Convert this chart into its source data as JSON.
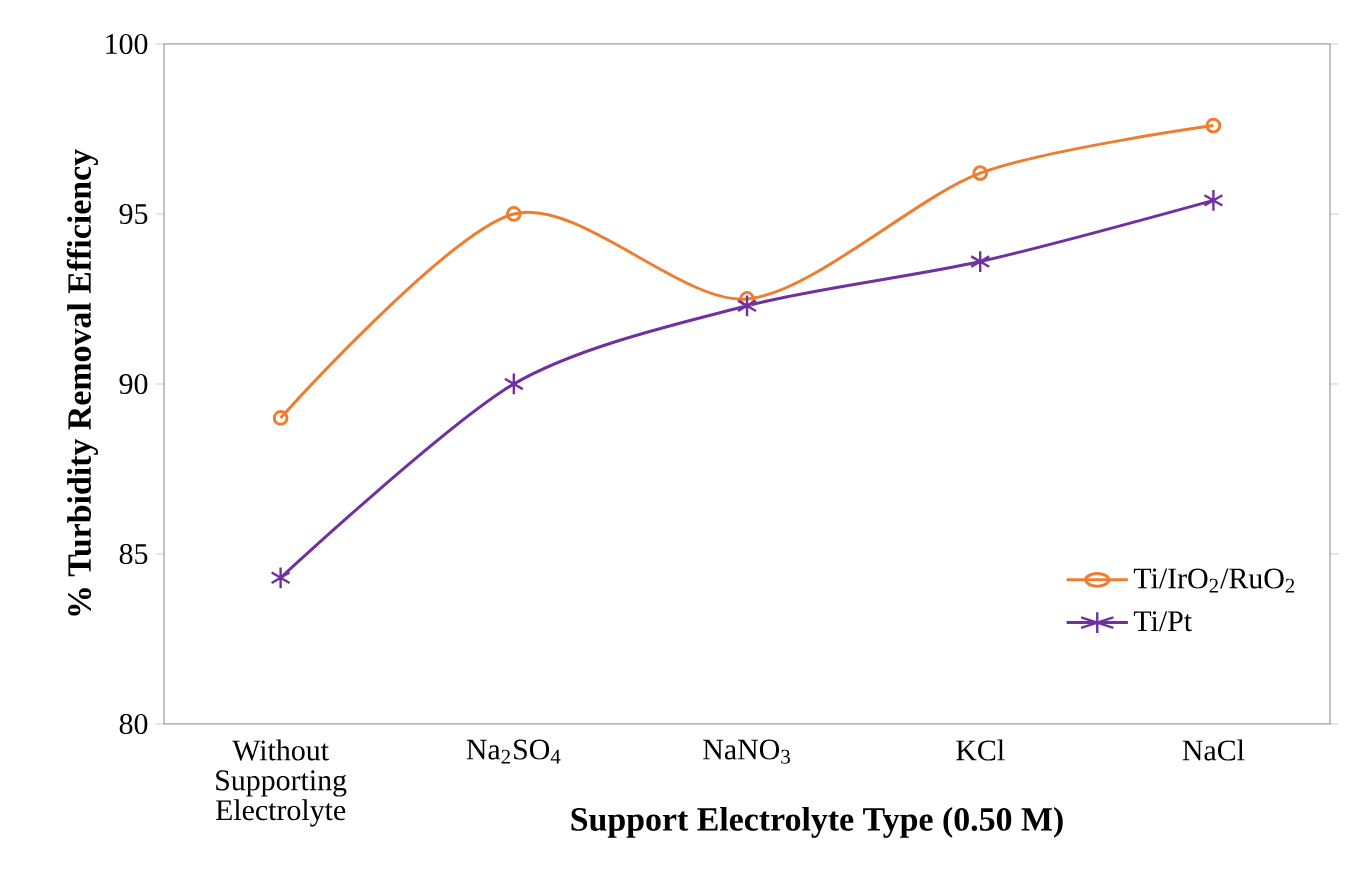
{
  "chart_data": {
    "type": "line",
    "xlabel": "Support Electrolyte Type  (0.50 M)",
    "ylabel": "%  Turbidity Removal Efficiency",
    "categories": [
      "Without Supporting Electrolyte",
      "Na$_{2}$SO$_{4}$",
      "NaNO$_{3}$",
      "KCl",
      "NaCl"
    ],
    "series": [
      {
        "name": "Ti/IrO$_{2}$/RuO$_{2}$",
        "color": "#ed7d31",
        "marker": "circle",
        "values": [
          89,
          95,
          92.5,
          96.2,
          97.6
        ]
      },
      {
        "name": "Ti/Pt",
        "color": "#7030a0",
        "marker": "cross",
        "values": [
          84.3,
          90,
          92.3,
          93.6,
          95.4
        ]
      }
    ],
    "ylim": [
      80,
      100
    ],
    "yticks": [
      80,
      85,
      90,
      95,
      100
    ],
    "grid": false,
    "legend": "bottom right",
    "line_style": "solid"
  }
}
